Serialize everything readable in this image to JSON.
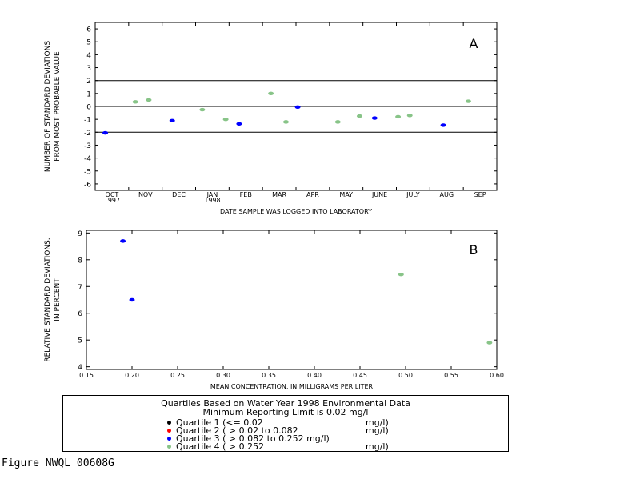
{
  "figure_id": "Figure NWQL 00608G",
  "colors": {
    "quartile1": "#000000",
    "quartile2": "#ff0000",
    "quartile3": "#0000ff",
    "quartile4": "#88c488"
  },
  "legend": {
    "title": "Quartiles Based on Water Year 1998 Environmental Data",
    "subtitle": "Minimum Reporting Limit is 0.02 mg/l",
    "entries": [
      {
        "label": "Quartile 1 (<= 0.02",
        "unit": "mg/l)",
        "color": "#000000"
      },
      {
        "label": "Quartile 2 ( > 0.02 to 0.082",
        "unit": "mg/l)",
        "color": "#ff0000"
      },
      {
        "label": "Quartile 3 ( > 0.082 to 0.252 mg/l)",
        "unit": "",
        "color": "#0000ff"
      },
      {
        "label": "Quartile 4 ( > 0.252",
        "unit": "mg/l)",
        "color": "#88c488"
      }
    ]
  },
  "chart_data": [
    {
      "type": "scatter",
      "panel_label": "A",
      "xlabel": "DATE SAMPLE WAS LOGGED INTO LABORATORY",
      "ylabel": [
        "NUMBER OF STANDARD DEVIATIONS",
        "FROM MOST PROBABLE VALUE"
      ],
      "xlim": [
        0,
        12
      ],
      "ylim": [
        -6.5,
        6.5
      ],
      "yticks": [
        -6,
        -5,
        -4,
        -3,
        -2,
        -1,
        0,
        1,
        2,
        3,
        4,
        5,
        6
      ],
      "month_labels": [
        "OCT",
        "NOV",
        "DEC",
        "JAN",
        "FEB",
        "MAR",
        "APR",
        "MAY",
        "JUNE",
        "JULY",
        "AUG",
        "SEP"
      ],
      "year_labels": [
        {
          "month": "OCT",
          "year": "1997"
        },
        {
          "month": "JAN",
          "year": "1998"
        }
      ],
      "reference_lines": [
        2,
        0,
        -2
      ],
      "grid": false,
      "series": [
        {
          "quartile": 3,
          "color": "#0000ff",
          "points": [
            {
              "x": 0.3,
              "y": -2.05
            },
            {
              "x": 2.3,
              "y": -1.1
            },
            {
              "x": 4.3,
              "y": -1.35
            },
            {
              "x": 6.05,
              "y": -0.05
            },
            {
              "x": 8.35,
              "y": -0.9
            },
            {
              "x": 10.4,
              "y": -1.45
            }
          ]
        },
        {
          "quartile": 4,
          "color": "#88c488",
          "points": [
            {
              "x": 1.2,
              "y": 0.35
            },
            {
              "x": 1.6,
              "y": 0.5
            },
            {
              "x": 3.2,
              "y": -0.25
            },
            {
              "x": 3.9,
              "y": -1.0
            },
            {
              "x": 5.25,
              "y": 1.0
            },
            {
              "x": 5.7,
              "y": -1.2
            },
            {
              "x": 7.25,
              "y": -1.2
            },
            {
              "x": 7.9,
              "y": -0.75
            },
            {
              "x": 9.05,
              "y": -0.8
            },
            {
              "x": 9.4,
              "y": -0.7
            },
            {
              "x": 11.15,
              "y": 0.4
            }
          ]
        }
      ]
    },
    {
      "type": "scatter",
      "panel_label": "B",
      "xlabel": "MEAN CONCENTRATION, IN MILLIGRAMS PER LITER",
      "ylabel": [
        "RELATIVE STANDARD DEVIATIONS,",
        "IN PERCENT"
      ],
      "xlim": [
        0.15,
        0.6
      ],
      "ylim": [
        3.9,
        9.1
      ],
      "xticks": [
        "0.15",
        "0.20",
        "0.25",
        "0.30",
        "0.35",
        "0.40",
        "0.45",
        "0.50",
        "0.55",
        "0.60"
      ],
      "yticks": [
        4,
        5,
        6,
        7,
        8,
        9
      ],
      "grid": false,
      "series": [
        {
          "quartile": 3,
          "color": "#0000ff",
          "points": [
            {
              "x": 0.19,
              "y": 8.7
            },
            {
              "x": 0.2,
              "y": 6.5
            }
          ]
        },
        {
          "quartile": 4,
          "color": "#88c488",
          "points": [
            {
              "x": 0.495,
              "y": 7.45
            },
            {
              "x": 0.592,
              "y": 4.9
            }
          ]
        }
      ]
    }
  ]
}
